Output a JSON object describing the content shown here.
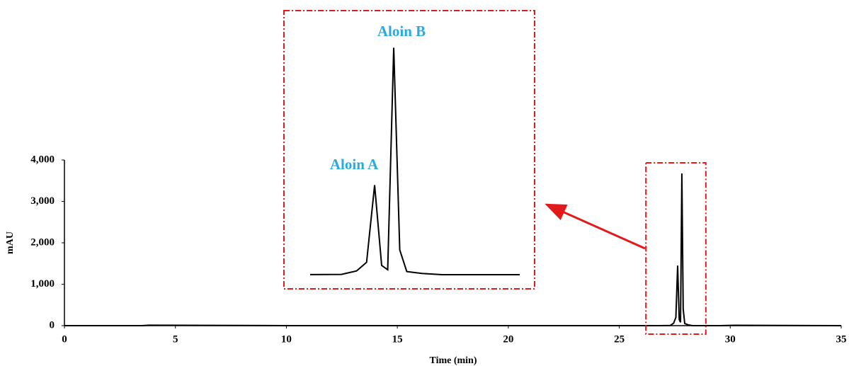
{
  "chart_data": {
    "type": "line",
    "ylabel": "mAU",
    "xlabel": "Time (min)",
    "x": [
      0,
      3.5,
      3.8,
      10,
      20,
      26.8,
      27.3,
      27.45,
      27.55,
      27.63,
      27.7,
      27.76,
      27.82,
      27.88,
      27.95,
      28.1,
      28.3,
      29.5,
      30.2,
      35
    ],
    "series": [
      {
        "color": "#000000",
        "values": [
          0,
          0,
          10,
          0,
          0,
          0,
          5,
          60,
          200,
          1450,
          150,
          80,
          3675,
          400,
          50,
          20,
          0,
          0,
          8,
          0
        ]
      }
    ],
    "xlim": [
      0,
      35
    ],
    "xticks": [
      0,
      5,
      10,
      15,
      20,
      25,
      30,
      35
    ],
    "ylim": [
      0,
      4000
    ],
    "yticks": [
      0,
      {
        "value": 1000,
        "label": "1,000"
      },
      {
        "value": 2000,
        "label": "2,000"
      },
      {
        "value": 3000,
        "label": "3,000"
      },
      {
        "value": 4000,
        "label": "4,000"
      }
    ],
    "zoom": {
      "xlim": [
        26.2,
        28.9
      ],
      "color": "#e31a1c"
    },
    "annotations": [
      {
        "text": "Aloin A",
        "color": "#29abe2"
      },
      {
        "text": "Aloin B",
        "color": "#29abe2"
      }
    ]
  }
}
